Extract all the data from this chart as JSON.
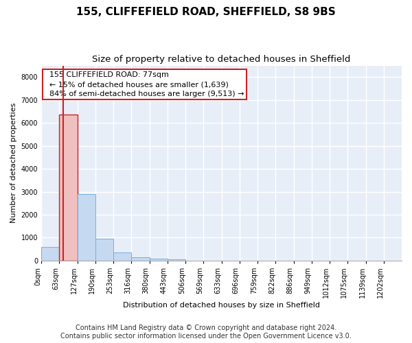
{
  "title1": "155, CLIFFEFIELD ROAD, SHEFFIELD, S8 9BS",
  "title2": "Size of property relative to detached houses in Sheffield",
  "xlabel": "Distribution of detached houses by size in Sheffield",
  "ylabel": "Number of detached properties",
  "footer1": "Contains HM Land Registry data © Crown copyright and database right 2024.",
  "footer2": "Contains public sector information licensed under the Open Government Licence v3.0.",
  "annotation_title": "155 CLIFFEFIELD ROAD: 77sqm",
  "annotation_line1": "← 15% of detached houses are smaller (1,639)",
  "annotation_line2": "84% of semi-detached houses are larger (9,513) →",
  "property_size": 77,
  "bar_edges": [
    0,
    63,
    127,
    190,
    253,
    316,
    380,
    443,
    506,
    569,
    633,
    696,
    759,
    822,
    886,
    949,
    1012,
    1075,
    1139,
    1202,
    1265
  ],
  "bar_heights": [
    600,
    6350,
    2900,
    960,
    360,
    155,
    80,
    50,
    0,
    0,
    0,
    0,
    0,
    0,
    0,
    0,
    0,
    0,
    0,
    0
  ],
  "bar_color": "#c5d9f0",
  "bar_edge_color": "#7bafd4",
  "highlight_bar_color": "#f0c0c0",
  "highlight_bar_edge_color": "#cc2222",
  "vline_color": "#cc2222",
  "ylim": [
    0,
    8500
  ],
  "yticks": [
    0,
    1000,
    2000,
    3000,
    4000,
    5000,
    6000,
    7000,
    8000
  ],
  "background_color": "#e8eef8",
  "grid_color": "#ffffff",
  "fig_background": "#ffffff",
  "annotation_box_color": "#ffffff",
  "annotation_box_edge_color": "#cc2222",
  "title1_fontsize": 11,
  "title2_fontsize": 9.5,
  "axis_label_fontsize": 8,
  "tick_fontsize": 7,
  "annotation_fontsize": 8,
  "footer_fontsize": 7
}
